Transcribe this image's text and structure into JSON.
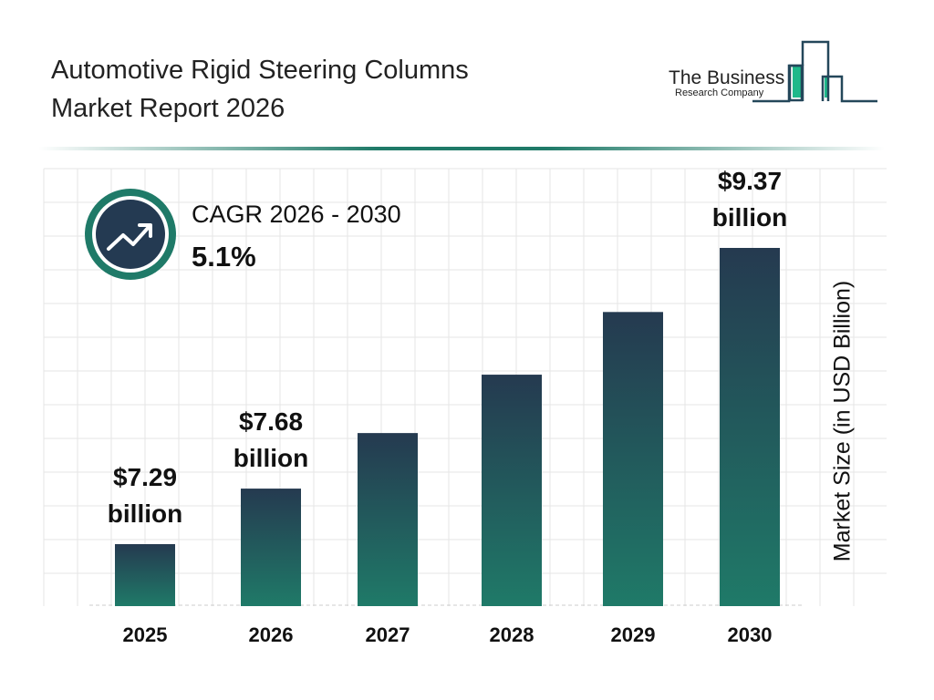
{
  "header": {
    "title_line1": "Automotive Rigid Steering Columns",
    "title_line2": "Market Report 2026"
  },
  "logo": {
    "line1": "The Business",
    "line2": "Research Company"
  },
  "cagr": {
    "label": "CAGR 2026 - 2030",
    "value": "5.1%",
    "icon": "trending-up-icon"
  },
  "colors": {
    "bar_top": "#253a50",
    "bar_bottom": "#1f7a68",
    "accent": "#1f7a68",
    "grid": "#e6e6e6"
  },
  "chart_data": {
    "type": "bar",
    "title": "Automotive Rigid Steering Columns Market Report 2026",
    "ylabel": "Market Size (in USD Billion)",
    "xlabel": "",
    "categories": [
      "2025",
      "2026",
      "2027",
      "2028",
      "2029",
      "2030"
    ],
    "values": [
      7.29,
      7.68,
      8.07,
      8.48,
      8.92,
      9.37
    ],
    "data_labels": [
      {
        "value": "$7.29",
        "unit": "billion"
      },
      {
        "value": "$7.68",
        "unit": "billion"
      },
      null,
      null,
      null,
      {
        "value": "$9.37",
        "unit": "billion"
      }
    ],
    "grid": true,
    "legend": "none"
  }
}
